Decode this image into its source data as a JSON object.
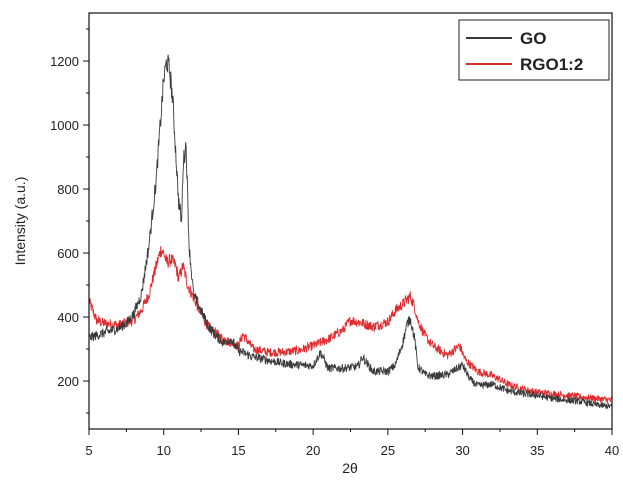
{
  "chart_data": {
    "type": "line",
    "xlabel": "2θ",
    "ylabel": "Intensity (a.u.)",
    "xlim": [
      5,
      40
    ],
    "ylim": [
      50,
      1350
    ],
    "x_ticks": [
      "5",
      "10",
      "15",
      "20",
      "25",
      "30",
      "35",
      "40"
    ],
    "y_ticks": [
      "200",
      "400",
      "600",
      "800",
      "1000",
      "1200"
    ],
    "grid": false,
    "legend_position": "top-right",
    "colors": {
      "GO": "#3a3a3a",
      "RGO1:2": "#e0292d"
    },
    "series": [
      {
        "name": "GO",
        "x": [
          5,
          6,
          7,
          7.5,
          8,
          8.5,
          9,
          9.5,
          9.8,
          10,
          10.2,
          10.4,
          10.6,
          10.8,
          11,
          11.2,
          11.3,
          11.5,
          11.7,
          12,
          12.5,
          13,
          13.5,
          14,
          14.5,
          15,
          16,
          17,
          18,
          19,
          20,
          20.5,
          21,
          22,
          23,
          23.3,
          24,
          25,
          25.5,
          26,
          26.3,
          26.5,
          26.8,
          27,
          27.5,
          28,
          29,
          30,
          30.5,
          31,
          32,
          33,
          34,
          35,
          36,
          37,
          38,
          39,
          40
        ],
        "y": [
          335,
          350,
          365,
          380,
          410,
          470,
          620,
          830,
          1020,
          1140,
          1200,
          1170,
          1080,
          920,
          760,
          700,
          880,
          940,
          620,
          470,
          420,
          370,
          340,
          320,
          330,
          295,
          275,
          265,
          255,
          250,
          248,
          290,
          240,
          240,
          245,
          275,
          230,
          230,
          250,
          320,
          380,
          395,
          330,
          245,
          220,
          215,
          220,
          250,
          205,
          185,
          190,
          170,
          160,
          155,
          145,
          140,
          135,
          125,
          120
        ]
      },
      {
        "name": "RGO1:2",
        "x": [
          5,
          5.5,
          6,
          7,
          8,
          8.5,
          9,
          9.5,
          9.8,
          10,
          10.2,
          10.5,
          10.8,
          11,
          11.3,
          11.6,
          12,
          12.5,
          13,
          14,
          15,
          15.3,
          16,
          17,
          18,
          19,
          20,
          21,
          22,
          22.5,
          23,
          24,
          25,
          25.5,
          26,
          26.5,
          26.8,
          27,
          27.5,
          28,
          29,
          29.5,
          29.8,
          30.2,
          31,
          31.8,
          32.5,
          33,
          34,
          35,
          36,
          37,
          38,
          39,
          40
        ],
        "y": [
          450,
          390,
          380,
          375,
          390,
          420,
          470,
          560,
          610,
          600,
          570,
          580,
          560,
          520,
          560,
          500,
          460,
          410,
          370,
          330,
          310,
          345,
          300,
          290,
          290,
          295,
          310,
          330,
          360,
          390,
          385,
          370,
          385,
          420,
          440,
          465,
          430,
          390,
          340,
          310,
          280,
          300,
          310,
          265,
          230,
          220,
          205,
          190,
          175,
          165,
          160,
          155,
          150,
          145,
          140
        ]
      }
    ]
  }
}
